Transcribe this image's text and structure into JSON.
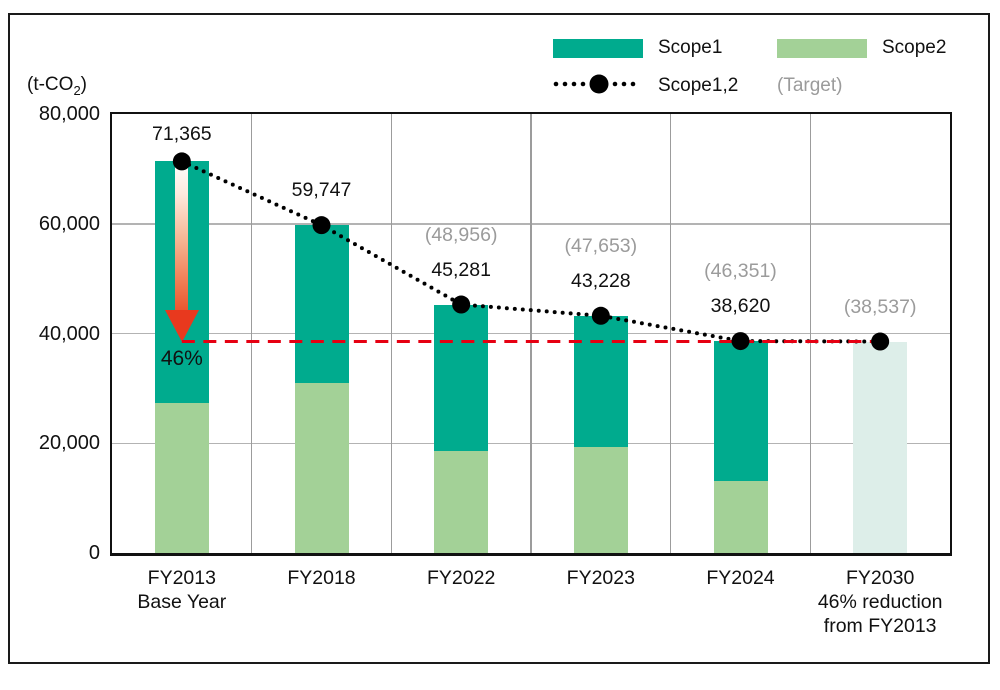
{
  "unit": {
    "prefix": "(t-CO",
    "sub": "2",
    "suffix": ")"
  },
  "legend": {
    "scope1": "Scope1",
    "scope2": "Scope2",
    "scope12": "Scope1,2",
    "target": "(Target)"
  },
  "colors": {
    "scope1": "#00ab8e",
    "scope2": "#a3d197",
    "target_bar": "#ddeee9",
    "target_line": "#e60012",
    "arrow_head": "#e8391e",
    "dot": "#000000",
    "gray_text": "#9b9b9b"
  },
  "chart_data": {
    "type": "bar",
    "stacked": true,
    "title": "",
    "ylabel": "t-CO2",
    "ylim": [
      0,
      80000
    ],
    "grid": true,
    "legend_position": "top-right",
    "y_ticks": [
      {
        "label": "80,000",
        "value": 80000
      },
      {
        "label": "60,000",
        "value": 60000
      },
      {
        "label": "40,000",
        "value": 40000
      },
      {
        "label": "20,000",
        "value": 20000
      },
      {
        "label": "0",
        "value": 0
      }
    ],
    "categories": [
      {
        "lines": [
          "FY2013",
          "Base Year"
        ]
      },
      {
        "lines": [
          "FY2018"
        ]
      },
      {
        "lines": [
          "FY2022"
        ]
      },
      {
        "lines": [
          "FY2023"
        ]
      },
      {
        "lines": [
          "FY2024"
        ]
      },
      {
        "lines": [
          "FY2030",
          "46% reduction",
          "from FY2013"
        ]
      }
    ],
    "series": [
      {
        "name": "Scope1",
        "color": "#00ab8e",
        "values": [
          44065,
          28747,
          26681,
          23928,
          25520,
          null
        ]
      },
      {
        "name": "Scope2",
        "color": "#a3d197",
        "values": [
          27300,
          31000,
          18600,
          19300,
          13100,
          null
        ]
      }
    ],
    "totals": [
      {
        "value": 71365,
        "label": "71,365"
      },
      {
        "value": 59747,
        "label": "59,747"
      },
      {
        "value": 45281,
        "label": "45,281"
      },
      {
        "value": 43228,
        "label": "43,228"
      },
      {
        "value": 38620,
        "label": "38,620"
      },
      null
    ],
    "targets": [
      null,
      null,
      {
        "value": 48956,
        "label": "(48,956)"
      },
      {
        "value": 47653,
        "label": "(47,653)"
      },
      {
        "value": 46351,
        "label": "(46,351)"
      },
      {
        "value": 38537,
        "label": "(38,537)"
      }
    ],
    "target_bar": {
      "index": 5,
      "value": 38537
    },
    "line": {
      "name": "Scope1,2",
      "values": [
        71365,
        59747,
        45281,
        43228,
        38620,
        38537
      ]
    },
    "target_line": {
      "value": 38537,
      "from_index": 0,
      "to_index": 5
    },
    "reduction_arrow": {
      "index": 0,
      "from_value": 71365,
      "to_value": 38537,
      "label": "46%"
    }
  }
}
